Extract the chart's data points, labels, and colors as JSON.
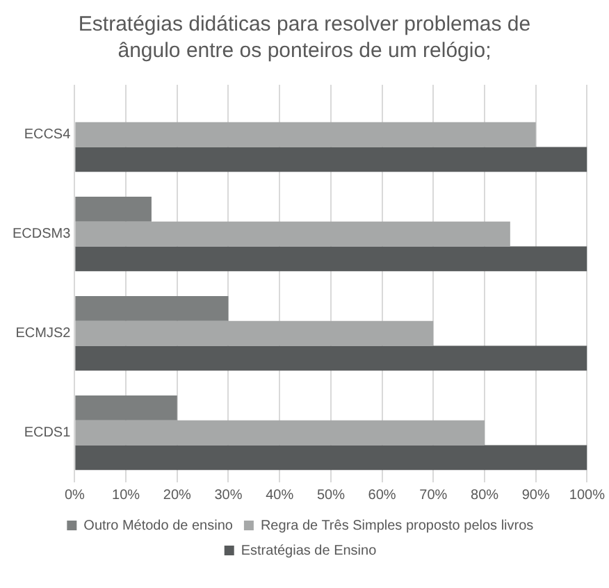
{
  "chart_data": {
    "type": "bar",
    "orientation": "horizontal",
    "title": "Estratégias didáticas para resolver problemas de ângulo entre os ponteiros de um relógio;",
    "categories": [
      "ECCS4",
      "ECDSM3",
      "ECMJS2",
      "ECDS1"
    ],
    "series": [
      {
        "name": "Outro Método de ensino",
        "color": "#7c7f7f",
        "values": [
          0,
          15,
          30,
          20
        ]
      },
      {
        "name": "Regra de Três Simples proposto pelos livros",
        "color": "#a6a8a8",
        "values": [
          90,
          85,
          70,
          80
        ]
      },
      {
        "name": "Estratégias de Ensino",
        "color": "#575a5b",
        "values": [
          100,
          100,
          100,
          100
        ]
      }
    ],
    "xlim": [
      0,
      100
    ],
    "xticks": [
      {
        "value": 0,
        "label": "0%"
      },
      {
        "value": 10,
        "label": "10%"
      },
      {
        "value": 20,
        "label": "20%"
      },
      {
        "value": 30,
        "label": "30%"
      },
      {
        "value": 40,
        "label": "40%"
      },
      {
        "value": 50,
        "label": "50%"
      },
      {
        "value": 60,
        "label": "60%"
      },
      {
        "value": 70,
        "label": "70%"
      },
      {
        "value": 80,
        "label": "80%"
      },
      {
        "value": 90,
        "label": "90%"
      },
      {
        "value": 100,
        "label": "100%"
      }
    ],
    "grid": "x",
    "legend": "bottom"
  }
}
